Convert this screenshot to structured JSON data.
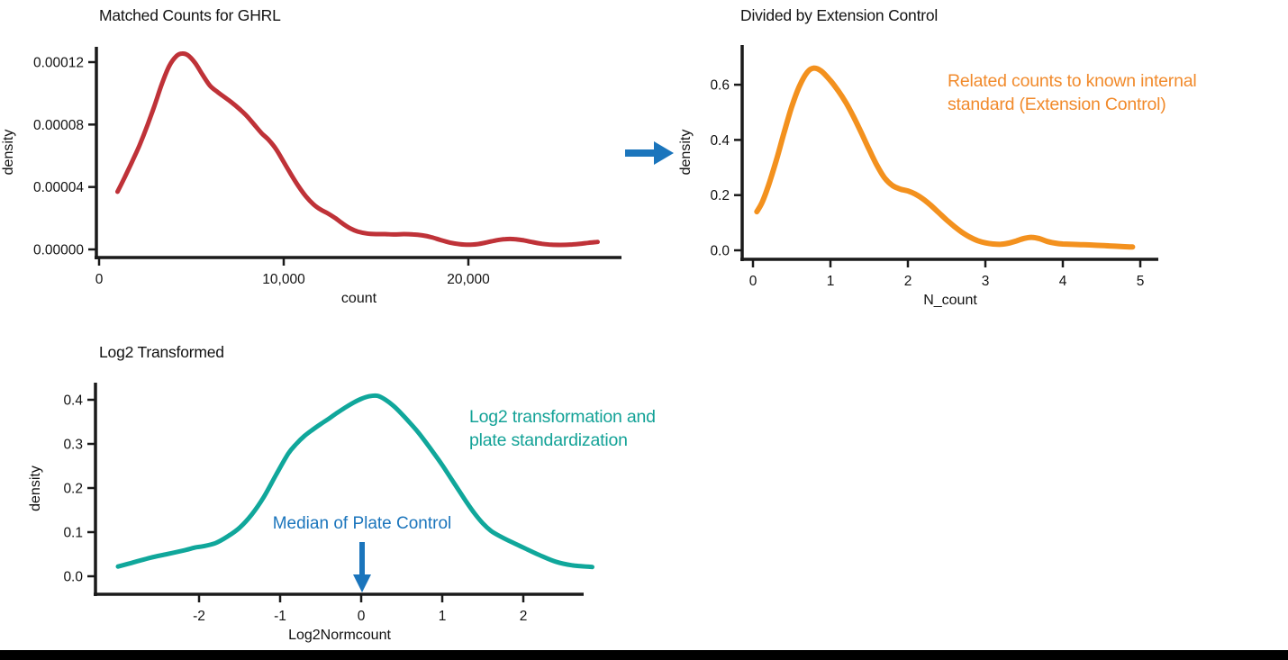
{
  "colors": {
    "red": "#BF3238",
    "orange": "#F3911E",
    "orange_text": "#F18A2B",
    "teal": "#10A79B",
    "teal_text": "#13A297",
    "blue": "#1B75BC",
    "axis": "#1A1A1A",
    "background": "#FFFFFF",
    "bottom_bar": "#000000"
  },
  "chart_data": [
    {
      "id": "matched-counts",
      "type": "line",
      "title": "Matched Counts for GHRL",
      "xlabel": "count",
      "ylabel": "density",
      "color_key": "red",
      "grid": false,
      "legend": null,
      "xlim": [
        0,
        28300
      ],
      "ylim": [
        0,
        0.000135
      ],
      "xticks": [
        {
          "v": 0,
          "label": "0"
        },
        {
          "v": 10000,
          "label": "10,000"
        },
        {
          "v": 20000,
          "label": "20,000"
        }
      ],
      "yticks": [
        {
          "v": 0,
          "label": "0.00000"
        },
        {
          "v": 4e-05,
          "label": "0.00004"
        },
        {
          "v": 8e-05,
          "label": "0.00008"
        },
        {
          "v": 0.00012,
          "label": "0.00012"
        }
      ],
      "points": [
        [
          1000,
          3.7e-05
        ],
        [
          1400,
          4.65e-05
        ],
        [
          1800,
          5.65e-05
        ],
        [
          2200,
          6.7e-05
        ],
        [
          2600,
          7.9e-05
        ],
        [
          3000,
          9.2e-05
        ],
        [
          3400,
          0.000106
        ],
        [
          3800,
          0.0001175
        ],
        [
          4200,
          0.000124
        ],
        [
          4500,
          0.0001255
        ],
        [
          4800,
          0.0001245
        ],
        [
          5200,
          0.0001195
        ],
        [
          5600,
          0.000112
        ],
        [
          6000,
          0.000105
        ],
        [
          6400,
          0.000101
        ],
        [
          6800,
          9.75e-05
        ],
        [
          7200,
          9.4e-05
        ],
        [
          7600,
          9e-05
        ],
        [
          8000,
          8.55e-05
        ],
        [
          8400,
          8e-05
        ],
        [
          8800,
          7.45e-05
        ],
        [
          9200,
          7e-05
        ],
        [
          9600,
          6.4e-05
        ],
        [
          10000,
          5.6e-05
        ],
        [
          10400,
          4.8e-05
        ],
        [
          10800,
          4.05e-05
        ],
        [
          11200,
          3.4e-05
        ],
        [
          11600,
          2.9e-05
        ],
        [
          12000,
          2.55e-05
        ],
        [
          12400,
          2.3e-05
        ],
        [
          12800,
          2e-05
        ],
        [
          13200,
          1.65e-05
        ],
        [
          13600,
          1.35e-05
        ],
        [
          14000,
          1.15e-05
        ],
        [
          14500,
          1.02e-05
        ],
        [
          15000,
          9.8e-06
        ],
        [
          15500,
          9.8e-06
        ],
        [
          16000,
          9.6e-06
        ],
        [
          16500,
          9.8e-06
        ],
        [
          17000,
          9.6e-06
        ],
        [
          17500,
          9e-06
        ],
        [
          18000,
          7.8e-06
        ],
        [
          18500,
          6e-06
        ],
        [
          19000,
          4.4e-06
        ],
        [
          19500,
          3.4e-06
        ],
        [
          20000,
          3e-06
        ],
        [
          20500,
          3.4e-06
        ],
        [
          21000,
          4.5e-06
        ],
        [
          21500,
          5.8e-06
        ],
        [
          22000,
          6.6e-06
        ],
        [
          22500,
          6.6e-06
        ],
        [
          23000,
          5.8e-06
        ],
        [
          23500,
          4.6e-06
        ],
        [
          24000,
          3.6e-06
        ],
        [
          24500,
          3e-06
        ],
        [
          25000,
          2.9e-06
        ],
        [
          25500,
          3.1e-06
        ],
        [
          26000,
          3.5e-06
        ],
        [
          26500,
          4.2e-06
        ],
        [
          27000,
          4.8e-06
        ]
      ]
    },
    {
      "id": "divided-by-extension-control",
      "type": "line",
      "title": "Divided by Extension Control",
      "xlabel": "N_count",
      "ylabel": "density",
      "color_key": "orange",
      "grid": false,
      "legend": null,
      "xlim": [
        0,
        5.25
      ],
      "ylim": [
        0,
        0.72
      ],
      "xticks": [
        {
          "v": 0,
          "label": "0"
        },
        {
          "v": 1,
          "label": "1"
        },
        {
          "v": 2,
          "label": "2"
        },
        {
          "v": 3,
          "label": "3"
        },
        {
          "v": 4,
          "label": "4"
        },
        {
          "v": 5,
          "label": "5"
        }
      ],
      "yticks": [
        {
          "v": 0.0,
          "label": "0.0"
        },
        {
          "v": 0.2,
          "label": "0.2"
        },
        {
          "v": 0.4,
          "label": "0.4"
        },
        {
          "v": 0.6,
          "label": "0.6"
        }
      ],
      "points": [
        [
          0.05,
          0.14
        ],
        [
          0.12,
          0.175
        ],
        [
          0.2,
          0.235
        ],
        [
          0.3,
          0.325
        ],
        [
          0.4,
          0.425
        ],
        [
          0.5,
          0.52
        ],
        [
          0.6,
          0.595
        ],
        [
          0.7,
          0.645
        ],
        [
          0.78,
          0.66
        ],
        [
          0.88,
          0.65
        ],
        [
          1.0,
          0.615
        ],
        [
          1.1,
          0.578
        ],
        [
          1.2,
          0.535
        ],
        [
          1.3,
          0.483
        ],
        [
          1.4,
          0.425
        ],
        [
          1.5,
          0.365
        ],
        [
          1.6,
          0.308
        ],
        [
          1.7,
          0.262
        ],
        [
          1.8,
          0.235
        ],
        [
          1.9,
          0.222
        ],
        [
          2.0,
          0.215
        ],
        [
          2.1,
          0.203
        ],
        [
          2.2,
          0.185
        ],
        [
          2.3,
          0.162
        ],
        [
          2.4,
          0.136
        ],
        [
          2.5,
          0.11
        ],
        [
          2.6,
          0.086
        ],
        [
          2.7,
          0.065
        ],
        [
          2.8,
          0.048
        ],
        [
          2.9,
          0.035
        ],
        [
          3.0,
          0.027
        ],
        [
          3.1,
          0.023
        ],
        [
          3.2,
          0.022
        ],
        [
          3.3,
          0.026
        ],
        [
          3.4,
          0.034
        ],
        [
          3.5,
          0.043
        ],
        [
          3.6,
          0.047
        ],
        [
          3.7,
          0.042
        ],
        [
          3.8,
          0.032
        ],
        [
          3.9,
          0.026
        ],
        [
          4.0,
          0.023
        ],
        [
          4.2,
          0.021
        ],
        [
          4.4,
          0.019
        ],
        [
          4.6,
          0.016
        ],
        [
          4.8,
          0.013
        ],
        [
          4.9,
          0.012
        ]
      ],
      "annotation": {
        "lines": [
          "Related counts to known internal",
          "standard (Extension Control)"
        ],
        "color_key": "orange_text"
      }
    },
    {
      "id": "log2-transformed",
      "type": "line",
      "title": "Log2 Transformed",
      "xlabel": "Log2Normcount",
      "ylabel": "density",
      "color_key": "teal",
      "grid": false,
      "legend": null,
      "xlim": [
        -3.3,
        2.75
      ],
      "ylim": [
        0,
        0.45
      ],
      "xticks": [
        {
          "v": -2,
          "label": "-2"
        },
        {
          "v": -1,
          "label": "-1"
        },
        {
          "v": 0,
          "label": "0"
        },
        {
          "v": 1,
          "label": "1"
        },
        {
          "v": 2,
          "label": "2"
        }
      ],
      "yticks": [
        {
          "v": 0.0,
          "label": "0.0"
        },
        {
          "v": 0.1,
          "label": "0.1"
        },
        {
          "v": 0.2,
          "label": "0.2"
        },
        {
          "v": 0.3,
          "label": "0.3"
        },
        {
          "v": 0.4,
          "label": "0.4"
        }
      ],
      "points": [
        [
          -3.0,
          0.022
        ],
        [
          -2.8,
          0.032
        ],
        [
          -2.6,
          0.042
        ],
        [
          -2.4,
          0.05
        ],
        [
          -2.2,
          0.058
        ],
        [
          -2.05,
          0.065
        ],
        [
          -1.95,
          0.068
        ],
        [
          -1.8,
          0.075
        ],
        [
          -1.65,
          0.09
        ],
        [
          -1.5,
          0.11
        ],
        [
          -1.35,
          0.14
        ],
        [
          -1.2,
          0.18
        ],
        [
          -1.05,
          0.23
        ],
        [
          -0.9,
          0.278
        ],
        [
          -0.8,
          0.3
        ],
        [
          -0.7,
          0.318
        ],
        [
          -0.6,
          0.332
        ],
        [
          -0.5,
          0.345
        ],
        [
          -0.4,
          0.357
        ],
        [
          -0.3,
          0.37
        ],
        [
          -0.2,
          0.382
        ],
        [
          -0.1,
          0.393
        ],
        [
          0.0,
          0.402
        ],
        [
          0.1,
          0.408
        ],
        [
          0.2,
          0.409
        ],
        [
          0.3,
          0.4
        ],
        [
          0.4,
          0.386
        ],
        [
          0.5,
          0.368
        ],
        [
          0.6,
          0.348
        ],
        [
          0.7,
          0.327
        ],
        [
          0.8,
          0.303
        ],
        [
          0.9,
          0.278
        ],
        [
          1.0,
          0.252
        ],
        [
          1.1,
          0.224
        ],
        [
          1.2,
          0.196
        ],
        [
          1.3,
          0.168
        ],
        [
          1.4,
          0.142
        ],
        [
          1.5,
          0.12
        ],
        [
          1.6,
          0.103
        ],
        [
          1.7,
          0.092
        ],
        [
          1.85,
          0.078
        ],
        [
          2.0,
          0.065
        ],
        [
          2.2,
          0.048
        ],
        [
          2.4,
          0.033
        ],
        [
          2.6,
          0.025
        ],
        [
          2.85,
          0.021
        ]
      ],
      "annotation": {
        "lines": [
          "Log2 transformation and",
          "plate standardization"
        ],
        "color_key": "teal_text"
      },
      "marker": {
        "label": "Median of Plate Control",
        "x": 0,
        "color_key": "blue"
      }
    }
  ]
}
